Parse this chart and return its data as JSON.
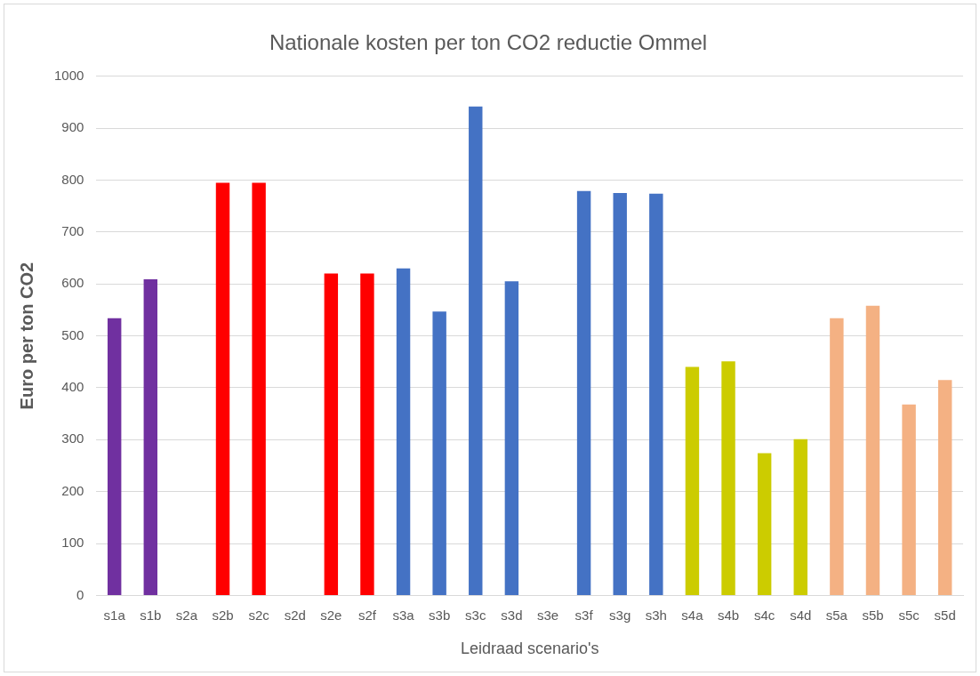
{
  "chart_data": {
    "type": "bar",
    "title": "Nationale kosten per ton CO2 reductie Ommel",
    "xlabel": "Leidraad scenario's",
    "ylabel": "Euro per ton CO2",
    "categories": [
      "s1a",
      "s1b",
      "s2a",
      "s2b",
      "s2c",
      "s2d",
      "s2e",
      "s2f",
      "s3a",
      "s3b",
      "s3c",
      "s3d",
      "s3e",
      "s3f",
      "s3g",
      "s3h",
      "s4a",
      "s4b",
      "s4c",
      "s4d",
      "s5a",
      "s5b",
      "s5c",
      "s5d"
    ],
    "values": [
      534,
      609,
      null,
      795,
      795,
      null,
      620,
      620,
      630,
      547,
      942,
      605,
      null,
      779,
      775,
      774,
      440,
      451,
      274,
      301,
      534,
      558,
      368,
      415
    ],
    "colors": [
      "#7030a0",
      "#7030a0",
      "#ff0000",
      "#ff0000",
      "#ff0000",
      "#ff0000",
      "#ff0000",
      "#ff0000",
      "#4472c4",
      "#4472c4",
      "#4472c4",
      "#4472c4",
      "#4472c4",
      "#4472c4",
      "#4472c4",
      "#4472c4",
      "#cccc00",
      "#cccc00",
      "#cccc00",
      "#cccc00",
      "#f4b183",
      "#f4b183",
      "#f4b183",
      "#f4b183"
    ],
    "ylim": [
      0,
      1000
    ],
    "yticks": [
      0,
      100,
      200,
      300,
      400,
      500,
      600,
      700,
      800,
      900,
      1000
    ],
    "grid": "y",
    "legend": false
  }
}
